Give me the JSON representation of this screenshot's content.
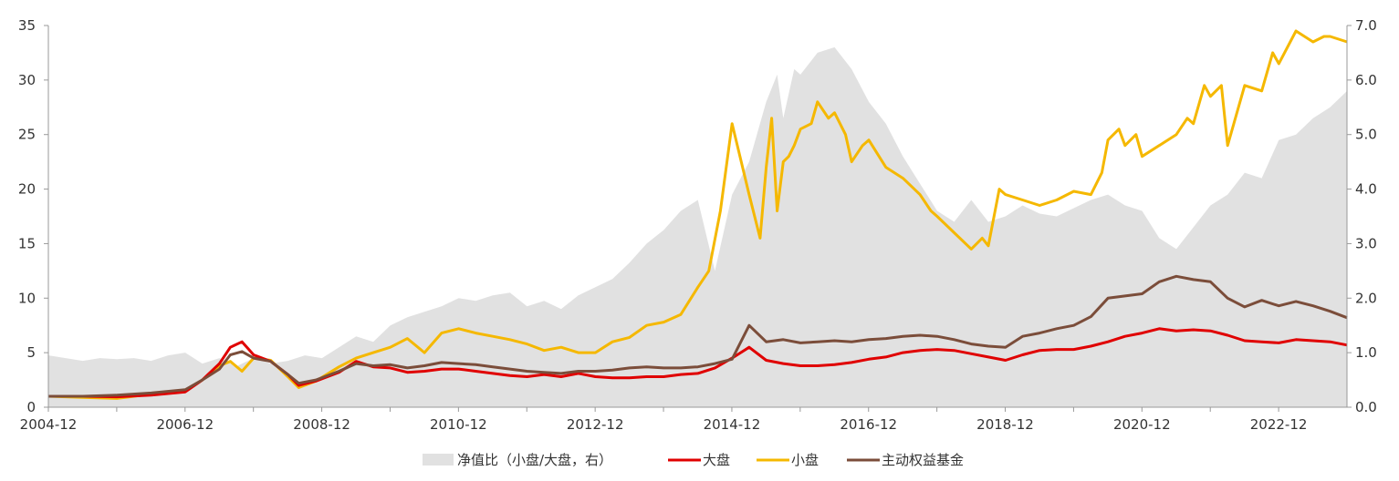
{
  "chart_data": {
    "type": "line",
    "x_labels": [
      "2004-12",
      "2006-12",
      "2008-12",
      "2010-12",
      "2012-12",
      "2014-12",
      "2016-12",
      "2018-12",
      "2020-12",
      "2022-12"
    ],
    "x_range": [
      2004.917,
      2023.917
    ],
    "ylim_left": [
      0,
      35
    ],
    "ylim_right": [
      0,
      7
    ],
    "left_ticks": [
      0,
      5,
      10,
      15,
      20,
      25,
      30,
      35
    ],
    "right_ticks": [
      "0.0",
      "1.0",
      "2.0",
      "3.0",
      "4.0",
      "5.0",
      "6.0",
      "7.0"
    ],
    "grid": false,
    "legend_position": "bottom",
    "area_series": {
      "name": "净值比（小盘/大盘，右）",
      "axis": "right",
      "color": "#e1e1e1",
      "x": [
        2004.92,
        2005.17,
        2005.42,
        2005.67,
        2005.92,
        2006.17,
        2006.42,
        2006.67,
        2006.92,
        2007.17,
        2007.42,
        2007.67,
        2007.92,
        2008.17,
        2008.42,
        2008.67,
        2008.92,
        2009.17,
        2009.42,
        2009.67,
        2009.92,
        2010.17,
        2010.42,
        2010.67,
        2010.92,
        2011.17,
        2011.42,
        2011.67,
        2011.92,
        2012.17,
        2012.42,
        2012.67,
        2012.92,
        2013.17,
        2013.42,
        2013.67,
        2013.92,
        2014.17,
        2014.42,
        2014.67,
        2014.92,
        2015.17,
        2015.42,
        2015.58,
        2015.67,
        2015.83,
        2015.92,
        2016.17,
        2016.42,
        2016.67,
        2016.92,
        2017.17,
        2017.42,
        2017.67,
        2017.92,
        2018.17,
        2018.42,
        2018.67,
        2018.92,
        2019.17,
        2019.42,
        2019.67,
        2019.92,
        2020.17,
        2020.42,
        2020.67,
        2020.92,
        2021.17,
        2021.42,
        2021.67,
        2021.92,
        2022.17,
        2022.42,
        2022.67,
        2022.92,
        2023.17,
        2023.42,
        2023.67,
        2023.92
      ],
      "values": [
        0.95,
        0.9,
        0.85,
        0.9,
        0.88,
        0.9,
        0.85,
        0.95,
        1.0,
        0.8,
        0.9,
        0.75,
        0.9,
        0.8,
        0.85,
        0.95,
        0.9,
        1.1,
        1.3,
        1.2,
        1.5,
        1.65,
        1.75,
        1.85,
        2.0,
        1.95,
        2.05,
        2.1,
        1.85,
        1.95,
        1.8,
        2.05,
        2.2,
        2.35,
        2.65,
        3.0,
        3.25,
        3.6,
        3.8,
        2.5,
        3.9,
        4.5,
        5.6,
        6.1,
        5.3,
        6.2,
        6.1,
        6.5,
        6.6,
        6.2,
        5.6,
        5.2,
        4.6,
        4.1,
        3.6,
        3.4,
        3.8,
        3.4,
        3.5,
        3.7,
        3.55,
        3.5,
        3.65,
        3.8,
        3.9,
        3.7,
        3.6,
        3.1,
        2.9,
        3.3,
        3.7,
        3.9,
        4.3,
        4.2,
        4.9,
        5.0,
        5.3,
        5.5,
        5.8
      ]
    },
    "series": [
      {
        "name": "大盘",
        "color": "#e00000",
        "x": [
          2004.92,
          2005.42,
          2005.92,
          2006.42,
          2006.92,
          2007.17,
          2007.42,
          2007.58,
          2007.75,
          2007.92,
          2008.17,
          2008.42,
          2008.58,
          2008.83,
          2009.17,
          2009.42,
          2009.67,
          2009.92,
          2010.17,
          2010.42,
          2010.67,
          2010.92,
          2011.17,
          2011.42,
          2011.67,
          2011.92,
          2012.17,
          2012.42,
          2012.67,
          2012.92,
          2013.17,
          2013.42,
          2013.67,
          2013.92,
          2014.17,
          2014.42,
          2014.67,
          2014.92,
          2015.17,
          2015.42,
          2015.67,
          2015.92,
          2016.17,
          2016.42,
          2016.67,
          2016.92,
          2017.17,
          2017.42,
          2017.67,
          2017.92,
          2018.17,
          2018.42,
          2018.67,
          2018.92,
          2019.17,
          2019.42,
          2019.67,
          2019.92,
          2020.17,
          2020.42,
          2020.67,
          2020.92,
          2021.17,
          2021.42,
          2021.67,
          2021.92,
          2022.17,
          2022.42,
          2022.67,
          2022.92,
          2023.17,
          2023.42,
          2023.67,
          2023.92
        ],
        "values": [
          1.0,
          1.0,
          0.95,
          1.1,
          1.4,
          2.5,
          4.0,
          5.5,
          6.0,
          4.8,
          4.2,
          3.0,
          2.0,
          2.4,
          3.2,
          4.2,
          3.7,
          3.6,
          3.2,
          3.3,
          3.5,
          3.5,
          3.3,
          3.1,
          2.9,
          2.8,
          3.0,
          2.8,
          3.1,
          2.8,
          2.7,
          2.7,
          2.8,
          2.8,
          3.0,
          3.1,
          3.6,
          4.5,
          5.5,
          4.3,
          4.0,
          3.8,
          3.8,
          3.9,
          4.1,
          4.4,
          4.6,
          5.0,
          5.2,
          5.3,
          5.2,
          4.9,
          4.6,
          4.3,
          4.8,
          5.2,
          5.3,
          5.3,
          5.6,
          6.0,
          6.5,
          6.8,
          7.2,
          7.0,
          7.1,
          7.0,
          6.6,
          6.1,
          6.0,
          5.9,
          6.2,
          6.1,
          6.0,
          5.7
        ]
      },
      {
        "name": "小盘",
        "color": "#f5b800",
        "x": [
          2004.92,
          2005.42,
          2005.92,
          2006.42,
          2006.92,
          2007.17,
          2007.42,
          2007.58,
          2007.75,
          2007.92,
          2008.17,
          2008.42,
          2008.58,
          2008.83,
          2009.17,
          2009.42,
          2009.67,
          2009.92,
          2010.17,
          2010.42,
          2010.67,
          2010.92,
          2011.17,
          2011.42,
          2011.67,
          2011.92,
          2012.17,
          2012.42,
          2012.67,
          2012.92,
          2013.17,
          2013.42,
          2013.67,
          2013.92,
          2014.17,
          2014.42,
          2014.58,
          2014.75,
          2014.92,
          2015.17,
          2015.33,
          2015.42,
          2015.5,
          2015.58,
          2015.67,
          2015.75,
          2015.83,
          2015.92,
          2016.08,
          2016.17,
          2016.33,
          2016.42,
          2016.58,
          2016.67,
          2016.83,
          2016.92,
          2017.17,
          2017.42,
          2017.67,
          2017.83,
          2017.92,
          2018.17,
          2018.42,
          2018.58,
          2018.67,
          2018.83,
          2018.92,
          2019.17,
          2019.42,
          2019.67,
          2019.92,
          2020.17,
          2020.33,
          2020.42,
          2020.58,
          2020.67,
          2020.83,
          2020.92,
          2021.17,
          2021.42,
          2021.58,
          2021.67,
          2021.83,
          2021.92,
          2022.08,
          2022.17,
          2022.42,
          2022.67,
          2022.83,
          2022.92,
          2023.17,
          2023.42,
          2023.58,
          2023.67,
          2023.92
        ],
        "values": [
          1.0,
          0.9,
          0.8,
          1.2,
          1.5,
          2.5,
          3.8,
          4.2,
          3.3,
          4.5,
          4.3,
          2.8,
          1.8,
          2.4,
          3.7,
          4.5,
          5.0,
          5.5,
          6.3,
          5.0,
          6.8,
          7.2,
          6.8,
          6.5,
          6.2,
          5.8,
          5.2,
          5.5,
          5.0,
          5.0,
          6.0,
          6.4,
          7.5,
          7.8,
          8.5,
          11.0,
          12.5,
          18.0,
          26.0,
          19.5,
          15.5,
          22.0,
          26.5,
          18.0,
          22.5,
          23.0,
          24.0,
          25.5,
          26.0,
          28.0,
          26.5,
          27.0,
          25.0,
          22.5,
          24.0,
          24.5,
          22.0,
          21.0,
          19.5,
          18.0,
          17.5,
          16.0,
          14.5,
          15.5,
          14.8,
          20.0,
          19.5,
          19.0,
          18.5,
          19.0,
          19.8,
          19.5,
          21.5,
          24.5,
          25.5,
          24.0,
          25.0,
          23.0,
          24.0,
          25.0,
          26.5,
          26.0,
          29.5,
          28.5,
          29.5,
          24.0,
          29.5,
          29.0,
          32.5,
          31.5,
          34.5,
          33.5,
          34.0,
          34.0,
          33.5
        ]
      },
      {
        "name": "主动权益基金",
        "color": "#7b4d3a",
        "x": [
          2004.92,
          2005.42,
          2005.92,
          2006.42,
          2006.92,
          2007.17,
          2007.42,
          2007.58,
          2007.75,
          2007.92,
          2008.17,
          2008.42,
          2008.58,
          2008.83,
          2009.17,
          2009.42,
          2009.67,
          2009.92,
          2010.17,
          2010.42,
          2010.67,
          2010.92,
          2011.17,
          2011.42,
          2011.67,
          2011.92,
          2012.17,
          2012.42,
          2012.67,
          2012.92,
          2013.17,
          2013.42,
          2013.67,
          2013.92,
          2014.17,
          2014.42,
          2014.67,
          2014.92,
          2015.17,
          2015.42,
          2015.67,
          2015.92,
          2016.17,
          2016.42,
          2016.67,
          2016.92,
          2017.17,
          2017.42,
          2017.67,
          2017.92,
          2018.17,
          2018.42,
          2018.67,
          2018.92,
          2019.17,
          2019.42,
          2019.67,
          2019.92,
          2020.17,
          2020.42,
          2020.67,
          2020.92,
          2021.17,
          2021.42,
          2021.67,
          2021.92,
          2022.17,
          2022.42,
          2022.67,
          2022.92,
          2023.17,
          2023.42,
          2023.67,
          2023.92
        ],
        "values": [
          1.0,
          1.0,
          1.1,
          1.3,
          1.6,
          2.5,
          3.5,
          4.8,
          5.1,
          4.5,
          4.2,
          3.0,
          2.2,
          2.5,
          3.3,
          4.0,
          3.8,
          3.9,
          3.6,
          3.8,
          4.1,
          4.0,
          3.9,
          3.7,
          3.5,
          3.3,
          3.2,
          3.1,
          3.3,
          3.3,
          3.4,
          3.6,
          3.7,
          3.6,
          3.6,
          3.7,
          4.0,
          4.4,
          7.5,
          6.0,
          6.2,
          5.9,
          6.0,
          6.1,
          6.0,
          6.2,
          6.3,
          6.5,
          6.6,
          6.5,
          6.2,
          5.8,
          5.6,
          5.5,
          6.5,
          6.8,
          7.2,
          7.5,
          8.3,
          10.0,
          10.2,
          10.4,
          11.5,
          12.0,
          11.7,
          11.5,
          10.0,
          9.2,
          9.8,
          9.3,
          9.7,
          9.3,
          8.8,
          8.2
        ]
      }
    ]
  }
}
